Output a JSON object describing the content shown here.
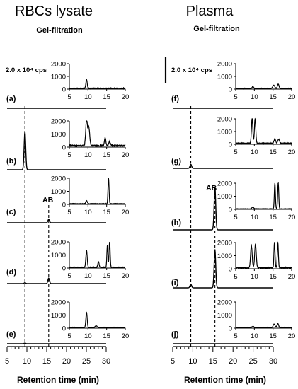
{
  "columns": [
    {
      "title": "RBCs lysate",
      "subtitle": "Gel-filtration",
      "scale_bar_text": "2.0 x 10⁴ cps",
      "xlabel": "Retention time (min)",
      "panels": [
        {
          "label": "(a)",
          "peak_label": ""
        },
        {
          "label": "(b)",
          "peak_label": ""
        },
        {
          "label": "(c)",
          "peak_label": "AB"
        },
        {
          "label": "(d)",
          "peak_label": ""
        },
        {
          "label": "(e)",
          "peak_label": ""
        }
      ]
    },
    {
      "title": "Plasma",
      "subtitle": "Gel-filtration",
      "scale_bar_text": "2.0 x 10⁴ cps",
      "xlabel": "Retention time (min)",
      "panels": [
        {
          "label": "(f)",
          "peak_label": ""
        },
        {
          "label": "(g)",
          "peak_label": ""
        },
        {
          "label": "(h)",
          "peak_label": "AB"
        },
        {
          "label": "(i)",
          "peak_label": ""
        },
        {
          "label": "(j)",
          "peak_label": ""
        }
      ]
    }
  ],
  "chart_data": [
    {
      "type": "line",
      "title": "RBCs lysate",
      "subtitle": "Gel-filtration",
      "xlabel": "Retention time (min)",
      "xlim": [
        5,
        30
      ],
      "xticks": [
        5,
        10,
        15,
        20,
        25,
        30
      ],
      "scale_bar": "2.0 x 10⁴ cps",
      "reference_lines_x": [
        9.5,
        15.5
      ],
      "main_traces": [
        {
          "panel": "(a)",
          "peaks": []
        },
        {
          "panel": "(b)",
          "peaks": [
            [
              9.5,
              17000
            ]
          ]
        },
        {
          "panel": "(c)",
          "peaks": [
            [
              15.5,
              1500
            ]
          ]
        },
        {
          "panel": "(d)",
          "peaks": [
            [
              15.5,
              2400
            ],
            [
              9.5,
              400
            ]
          ]
        },
        {
          "panel": "(e)",
          "peaks": [
            [
              9.5,
              300
            ]
          ]
        }
      ],
      "insets": {
        "xlim": [
          5,
          20
        ],
        "xticks": [
          5,
          10,
          15,
          20
        ],
        "ylim": [
          0,
          2000
        ],
        "yticks": [
          0,
          1000,
          2000
        ],
        "traces": [
          {
            "panel": "(a)",
            "peaks": [
              [
                9.6,
                700,
                0.25
              ]
            ],
            "baseline": 60
          },
          {
            "panel": "(b)",
            "peaks": [
              [
                9.6,
                2000,
                0.3
              ],
              [
                10.2,
                1400,
                0.35
              ],
              [
                14.6,
                600,
                0.25
              ],
              [
                15.8,
                300,
                0.3
              ]
            ],
            "baseline": 120
          },
          {
            "panel": "(c)",
            "peaks": [
              [
                9.6,
                250,
                0.25
              ],
              [
                15.5,
                2000,
                0.2
              ]
            ],
            "baseline": 50
          },
          {
            "panel": "(d)",
            "peaks": [
              [
                9.6,
                1300,
                0.25
              ],
              [
                12.8,
                400,
                0.25
              ],
              [
                15.2,
                1700,
                0.2
              ],
              [
                15.8,
                2000,
                0.2
              ]
            ],
            "baseline": 60
          },
          {
            "panel": "(e)",
            "peaks": [
              [
                9.6,
                1150,
                0.25
              ],
              [
                12.2,
                120,
                0.4
              ]
            ],
            "baseline": 50
          }
        ]
      }
    },
    {
      "type": "line",
      "title": "Plasma",
      "subtitle": "Gel-filtration",
      "xlabel": "Retention time (min)",
      "xlim": [
        5,
        30
      ],
      "xticks": [
        5,
        10,
        15,
        20,
        25,
        30
      ],
      "scale_bar": "2.0 x 10⁴ cps",
      "reference_lines_x": [
        9.5,
        15.5
      ],
      "main_traces": [
        {
          "panel": "(f)",
          "peaks": []
        },
        {
          "panel": "(g)",
          "peaks": [
            [
              9.5,
              1800
            ]
          ]
        },
        {
          "panel": "(h)",
          "peaks": [
            [
              15.5,
              19000
            ]
          ]
        },
        {
          "panel": "(i)",
          "peaks": [
            [
              15.5,
              17000
            ],
            [
              9.5,
              1600
            ]
          ]
        },
        {
          "panel": "(j)",
          "peaks": []
        }
      ],
      "insets": {
        "xlim": [
          5,
          20
        ],
        "xticks": [
          5,
          10,
          15,
          20
        ],
        "ylim": [
          0,
          2000
        ],
        "yticks": [
          0,
          1000,
          2000
        ],
        "traces": [
          {
            "panel": "(f)",
            "peaks": [
              [
                9.6,
                150,
                0.3
              ],
              [
                15.2,
                250,
                0.4
              ],
              [
                16.4,
                350,
                0.3
              ]
            ],
            "baseline": 50
          },
          {
            "panel": "(g)",
            "peaks": [
              [
                9.4,
                2000,
                0.25
              ],
              [
                10.2,
                2000,
                0.25
              ],
              [
                15.5,
                350,
                0.3
              ],
              [
                16.5,
                350,
                0.3
              ]
            ],
            "baseline": 80
          },
          {
            "panel": "(h)",
            "peaks": [
              [
                9.6,
                150,
                0.3
              ],
              [
                15.5,
                2000,
                0.2
              ],
              [
                16.4,
                2000,
                0.2
              ]
            ],
            "baseline": 40
          },
          {
            "panel": "(i)",
            "peaks": [
              [
                9.2,
                1700,
                0.3
              ],
              [
                10.3,
                1800,
                0.3
              ],
              [
                15.4,
                2000,
                0.2
              ],
              [
                16.3,
                2000,
                0.2
              ]
            ],
            "baseline": 80
          },
          {
            "panel": "(j)",
            "peaks": [
              [
                9.6,
                100,
                0.3
              ],
              [
                15.3,
                250,
                0.35
              ],
              [
                16.3,
                300,
                0.3
              ]
            ],
            "baseline": 50
          }
        ]
      }
    }
  ]
}
